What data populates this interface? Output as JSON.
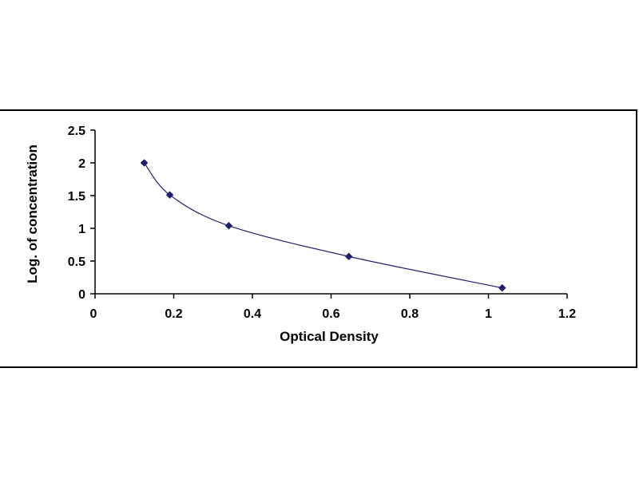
{
  "chart_data": {
    "type": "scatter",
    "title": "",
    "xlabel": "Optical Density",
    "ylabel": "Log. of concentration",
    "xlim": [
      0,
      1.2
    ],
    "ylim": [
      0,
      2.5
    ],
    "x_ticks": [
      "0",
      "0.2",
      "0.4",
      "0.6",
      "0.8",
      "1",
      "1.2"
    ],
    "y_ticks": [
      "0",
      "0.5",
      "1",
      "1.5",
      "2",
      "2.5"
    ],
    "grid": false,
    "legend": "none",
    "series": [
      {
        "x": [
          0.125,
          0.19,
          0.34,
          0.645,
          1.035
        ],
        "y": [
          2.0,
          1.51,
          1.04,
          0.57,
          0.09
        ],
        "marker": "diamond",
        "trendline": "smooth",
        "color": "#1f1f6e"
      }
    ]
  }
}
